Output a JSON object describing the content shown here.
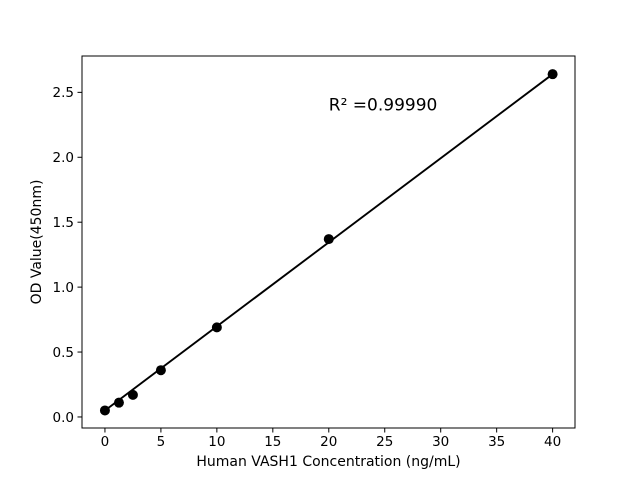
{
  "chart_data": {
    "type": "scatter",
    "title": "",
    "annotation": {
      "text": "R² =0.99990",
      "x": 20.0,
      "y": 2.36
    },
    "xlabel": "Human VASH1 Concentration (ng/mL)",
    "ylabel": "OD Value(450nm)",
    "x": [
      0,
      1.25,
      2.5,
      5,
      10,
      20,
      40
    ],
    "y": [
      0.05,
      0.11,
      0.17,
      0.36,
      0.69,
      1.37,
      2.64
    ],
    "trendline": {
      "x": [
        0,
        40
      ],
      "y": [
        0.05,
        2.64
      ]
    },
    "xticks": [
      0,
      5,
      10,
      15,
      20,
      25,
      30,
      35,
      40
    ],
    "xtick_labels": [
      "0",
      "5",
      "10",
      "15",
      "20",
      "25",
      "30",
      "35",
      "40"
    ],
    "yticks": [
      0.0,
      0.5,
      1.0,
      1.5,
      2.0,
      2.5
    ],
    "ytick_labels": [
      "0.0",
      "0.5",
      "1.0",
      "1.5",
      "2.0",
      "2.5"
    ],
    "xlim": [
      -2.05,
      42.0
    ],
    "ylim": [
      -0.085,
      2.78
    ],
    "grid": false,
    "legend": null,
    "point_color": "#000000",
    "line_color": "#000000",
    "axis_color": "#000000",
    "text_color": "#000000",
    "background": "#ffffff"
  }
}
